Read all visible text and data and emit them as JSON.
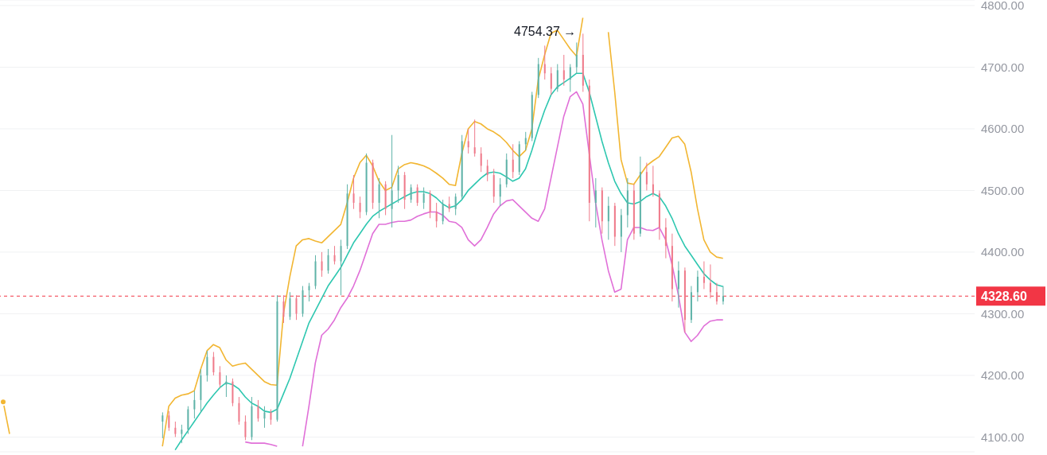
{
  "chart_data": {
    "type": "candlestick",
    "categories": [
      null,
      null,
      null,
      null,
      null,
      null,
      null,
      null,
      null,
      null,
      null,
      null,
      null,
      null,
      null,
      null,
      null,
      null,
      null,
      null,
      null,
      null,
      null,
      null,
      null,
      null,
      null,
      null,
      null,
      null,
      null,
      null,
      null,
      null,
      null,
      null,
      null,
      null,
      null,
      null,
      null,
      null,
      null,
      null,
      null,
      null,
      null,
      null,
      null,
      null,
      null,
      null,
      null,
      null,
      null,
      null,
      null,
      null,
      null,
      null,
      null,
      null,
      null,
      null,
      null,
      null,
      null,
      null,
      null,
      null,
      null,
      null,
      null,
      null,
      null,
      null,
      null,
      null,
      null,
      null,
      null,
      null,
      null,
      null,
      null,
      null,
      null,
      null,
      null,
      null,
      null,
      null,
      null,
      null,
      null,
      null,
      null,
      null,
      null,
      null,
      null,
      null,
      null,
      null,
      null,
      null,
      null,
      null,
      null,
      null,
      null,
      null,
      null,
      null,
      null,
      null,
      null,
      null,
      null,
      null,
      null,
      null,
      null,
      null,
      null,
      null,
      null,
      null,
      null,
      null,
      null,
      null,
      null,
      null,
      null,
      null,
      null,
      null,
      null,
      null,
      null,
      null,
      null,
      null,
      null,
      null,
      null,
      null,
      null,
      null,
      null,
      null,
      null
    ],
    "ohlc": [
      null,
      null,
      null,
      null,
      null,
      null,
      null,
      null,
      null,
      null,
      null,
      null,
      null,
      null,
      null,
      null,
      null,
      null,
      null,
      null,
      null,
      null,
      null,
      null,
      null,
      [
        4125,
        4140,
        4098,
        4135
      ],
      [
        4135,
        4142,
        4110,
        4115
      ],
      [
        4115,
        4125,
        4100,
        4105
      ],
      [
        4105,
        4120,
        4090,
        4112
      ],
      [
        4112,
        4150,
        4105,
        4145
      ],
      [
        4145,
        4175,
        4130,
        4160
      ],
      [
        4160,
        4210,
        4140,
        4200
      ],
      [
        4200,
        4240,
        4190,
        4230
      ],
      [
        4230,
        4238,
        4200,
        4205
      ],
      [
        4205,
        4215,
        4180,
        4185
      ],
      [
        4185,
        4200,
        4165,
        4190
      ],
      [
        4190,
        4195,
        4150,
        4155
      ],
      [
        4155,
        4165,
        4120,
        4125
      ],
      [
        4125,
        4135,
        4095,
        4100
      ],
      [
        4100,
        4165,
        4095,
        4150
      ],
      [
        4150,
        4160,
        4125,
        4130
      ],
      [
        4130,
        4150,
        4115,
        4140
      ],
      [
        4140,
        4145,
        4120,
        4128
      ],
      [
        4128,
        4330,
        4125,
        4320
      ],
      [
        4320,
        4330,
        4285,
        4295
      ],
      [
        4295,
        4335,
        4290,
        4325
      ],
      [
        4325,
        4330,
        4290,
        4300
      ],
      [
        4300,
        4345,
        4295,
        4338
      ],
      [
        4338,
        4350,
        4320,
        4345
      ],
      [
        4345,
        4395,
        4340,
        4385
      ],
      [
        4385,
        4400,
        4360,
        4370
      ],
      [
        4370,
        4405,
        4365,
        4395
      ],
      [
        4395,
        4410,
        4380,
        4385
      ],
      [
        4385,
        4420,
        4330,
        4410
      ],
      [
        4410,
        4510,
        4405,
        4495
      ],
      [
        4495,
        4525,
        4470,
        4480
      ],
      [
        4480,
        4490,
        4455,
        4465
      ],
      [
        4465,
        4560,
        4460,
        4545
      ],
      [
        4545,
        4550,
        4470,
        4480
      ],
      [
        4480,
        4520,
        4455,
        4510
      ],
      [
        4510,
        4515,
        4460,
        4470
      ],
      [
        4470,
        4590,
        4440,
        4500
      ],
      [
        4500,
        4540,
        4480,
        4525
      ],
      [
        4525,
        4530,
        4470,
        4485
      ],
      [
        4485,
        4510,
        4480,
        4505
      ],
      [
        4505,
        4510,
        4475,
        4480
      ],
      [
        4480,
        4505,
        4470,
        4495
      ],
      [
        4495,
        4500,
        4455,
        4465
      ],
      [
        4465,
        4480,
        4440,
        4450
      ],
      [
        4450,
        4485,
        4445,
        4478
      ],
      [
        4478,
        4490,
        4465,
        4470
      ],
      [
        4470,
        4495,
        4460,
        4490
      ],
      [
        4490,
        4590,
        4485,
        4580
      ],
      [
        4580,
        4600,
        4560,
        4570
      ],
      [
        4570,
        4615,
        4555,
        4560
      ],
      [
        4560,
        4570,
        4530,
        4540
      ],
      [
        4540,
        4550,
        4515,
        4525
      ],
      [
        4525,
        4535,
        4480,
        4490
      ],
      [
        4490,
        4520,
        4475,
        4510
      ],
      [
        4510,
        4560,
        4505,
        4550
      ],
      [
        4550,
        4575,
        4520,
        4530
      ],
      [
        4530,
        4580,
        4525,
        4575
      ],
      [
        4575,
        4595,
        4565,
        4585
      ],
      [
        4585,
        4660,
        4580,
        4655
      ],
      [
        4655,
        4715,
        4650,
        4705
      ],
      [
        4705,
        4735,
        4680,
        4690
      ],
      [
        4690,
        4700,
        4655,
        4665
      ],
      [
        4665,
        4705,
        4660,
        4695
      ],
      [
        4695,
        4720,
        4670,
        4680
      ],
      [
        4680,
        4705,
        4660,
        4700
      ],
      [
        4700,
        4740,
        4690,
        4720
      ],
      [
        4720,
        4754.37,
        4660,
        4670
      ],
      [
        4670,
        4680,
        4450,
        4480
      ],
      [
        4480,
        4520,
        4440,
        4500
      ],
      [
        4500,
        4505,
        4430,
        4450
      ],
      [
        4450,
        4490,
        4420,
        4475
      ],
      [
        4475,
        4480,
        4410,
        4425
      ],
      [
        4425,
        4470,
        4400,
        4460
      ],
      [
        4460,
        4520,
        4440,
        4500
      ],
      [
        4500,
        4510,
        4420,
        4430
      ],
      [
        4430,
        4555,
        4425,
        4530
      ],
      [
        4530,
        4545,
        4500,
        4510
      ],
      [
        4510,
        4540,
        4490,
        4495
      ],
      [
        4495,
        4500,
        4420,
        4440
      ],
      [
        4440,
        4455,
        4390,
        4410
      ],
      [
        4410,
        4430,
        4320,
        4340
      ],
      [
        4340,
        4385,
        4310,
        4370
      ],
      [
        4370,
        4375,
        4270,
        4290
      ],
      [
        4290,
        4345,
        4285,
        4335
      ],
      [
        4335,
        4370,
        4320,
        4360
      ],
      [
        4360,
        4385,
        4340,
        4350
      ],
      [
        4350,
        4380,
        4325,
        4335
      ],
      [
        4335,
        4350,
        4315,
        4320
      ],
      [
        4320,
        4345,
        4315,
        4328.6
      ],
      null,
      null,
      null,
      null,
      null,
      null,
      null,
      null,
      null,
      null,
      null,
      null,
      null,
      null,
      null,
      null,
      null,
      null,
      null,
      null,
      null,
      null,
      null,
      null,
      null,
      null,
      null,
      null,
      null,
      null,
      null,
      null,
      null,
      null,
      null,
      null,
      null,
      null,
      null
    ],
    "series": [
      {
        "type": "line",
        "color": "#f2b632",
        "values": [
          4157,
          4105,
          null,
          null,
          null,
          null,
          null,
          null,
          null,
          null,
          null,
          null,
          null,
          null,
          null,
          null,
          null,
          null,
          null,
          null,
          null,
          null,
          null,
          null,
          null,
          4085,
          4150,
          4163,
          4168,
          4170,
          4175,
          4210,
          4240,
          4250,
          4245,
          4225,
          4215,
          4218,
          4220,
          4210,
          4200,
          4190,
          4185,
          4184,
          4300,
          4360,
          4410,
          4420,
          4422,
          4418,
          4415,
          4425,
          4435,
          4445,
          4480,
          4520,
          4545,
          4557,
          4540,
          4515,
          4500,
          4505,
          4535,
          4542,
          4545,
          4543,
          4540,
          4535,
          4528,
          4520,
          4510,
          4508,
          4560,
          4600,
          4612,
          4608,
          4600,
          4595,
          4588,
          4578,
          4565,
          4555,
          4565,
          4600,
          4680,
          4720,
          4755,
          4760,
          4745,
          4730,
          4718,
          4780,
          null,
          null,
          null,
          4757,
          4660,
          4550,
          4512,
          4510,
          4525,
          4540,
          4548,
          4555,
          4570,
          4585,
          4588,
          4575,
          4530,
          4470,
          4420,
          4400,
          4392,
          4390,
          null,
          null,
          null,
          null,
          null,
          null,
          null,
          null,
          null,
          null,
          null,
          null,
          null,
          null,
          null,
          null,
          null,
          null,
          null,
          null,
          null,
          null,
          null,
          null,
          null,
          null,
          null,
          null,
          null,
          null,
          null,
          null,
          null,
          null,
          null,
          null,
          null,
          null,
          null
        ]
      },
      {
        "type": "line",
        "color": "#2ec7b0",
        "values": [
          null,
          null,
          null,
          null,
          null,
          null,
          null,
          null,
          null,
          null,
          null,
          null,
          null,
          null,
          null,
          null,
          null,
          null,
          null,
          null,
          null,
          null,
          null,
          null,
          null,
          null,
          null,
          4079,
          4095,
          4110,
          4125,
          4140,
          4155,
          4168,
          4180,
          4188,
          4185,
          4178,
          4165,
          4155,
          4150,
          4142,
          4140,
          4145,
          4170,
          4195,
          4225,
          4255,
          4285,
          4305,
          4325,
          4345,
          4360,
          4375,
          4395,
          4415,
          4430,
          4445,
          4458,
          4466,
          4472,
          4478,
          4484,
          4490,
          4495,
          4498,
          4498,
          4495,
          4488,
          4478,
          4472,
          4475,
          4485,
          4500,
          4510,
          4520,
          4528,
          4530,
          4528,
          4522,
          4515,
          4520,
          4535,
          4565,
          4600,
          4630,
          4655,
          4668,
          4675,
          4682,
          4690,
          4690,
          4660,
          4620,
          4580,
          4545,
          4515,
          4495,
          4480,
          4478,
          4482,
          4490,
          4495,
          4490,
          4475,
          4455,
          4430,
          4410,
          4395,
          4380,
          4365,
          4355,
          4347,
          4344,
          null,
          null,
          null,
          null,
          null,
          null,
          null,
          null,
          null,
          null,
          null,
          null,
          null,
          null,
          null,
          null,
          null,
          null,
          null,
          null,
          null,
          null,
          null,
          null,
          null,
          null,
          null,
          null,
          null,
          null,
          null,
          null,
          null,
          null,
          null,
          null,
          null,
          null,
          null
        ]
      },
      {
        "type": "line",
        "color": "#e070d8",
        "values": [
          null,
          null,
          null,
          null,
          null,
          null,
          null,
          null,
          null,
          null,
          null,
          null,
          null,
          null,
          null,
          null,
          null,
          null,
          null,
          null,
          null,
          null,
          null,
          null,
          null,
          null,
          null,
          null,
          null,
          null,
          null,
          null,
          null,
          null,
          null,
          null,
          null,
          null,
          4092,
          4090,
          4090,
          4090,
          4088,
          4085,
          null,
          null,
          null,
          4085,
          4150,
          4220,
          4265,
          4275,
          4290,
          4310,
          4325,
          4345,
          4370,
          4400,
          4430,
          4445,
          4445,
          4448,
          4450,
          4450,
          4452,
          4458,
          4462,
          4465,
          4465,
          4460,
          4450,
          4448,
          4440,
          4420,
          4410,
          4420,
          4440,
          4462,
          4475,
          4483,
          4485,
          4475,
          4465,
          4455,
          4450,
          4470,
          4520,
          4570,
          4620,
          4652,
          4660,
          4640,
          4560,
          4480,
          4420,
          4370,
          4335,
          4340,
          4420,
          4440,
          4440,
          4436,
          4435,
          4440,
          4420,
          4380,
          4330,
          4270,
          4255,
          4265,
          4280,
          4288,
          4290,
          4290,
          null,
          null,
          null,
          null,
          null,
          null,
          null,
          null,
          null,
          null,
          null,
          null,
          null,
          null,
          null,
          null,
          null,
          null,
          null,
          null,
          null,
          null,
          null,
          null,
          null,
          null,
          null,
          null,
          null,
          null,
          null,
          null,
          null,
          null,
          null,
          null,
          null,
          null,
          null
        ]
      }
    ],
    "ylim": [
      4076,
      4809
    ],
    "yticks": [
      {
        "value": 4100,
        "label": "4100.00"
      },
      {
        "value": 4200,
        "label": "4200.00"
      },
      {
        "value": 4300,
        "label": "4300.00"
      },
      {
        "value": 4400,
        "label": "4400.00"
      },
      {
        "value": 4500,
        "label": "4500.00"
      },
      {
        "value": 4600,
        "label": "4600.00"
      },
      {
        "value": 4700,
        "label": "4700.00"
      },
      {
        "value": 4800,
        "label": "4800.00"
      }
    ],
    "grid": "y",
    "tick_labels": "y",
    "ref_lines": [
      {
        "axis": "y",
        "value": 4328.6,
        "label": "4328.60",
        "color": "#f23645",
        "line_style": "dashed"
      }
    ],
    "annotations": [
      "4754.37 →"
    ]
  }
}
